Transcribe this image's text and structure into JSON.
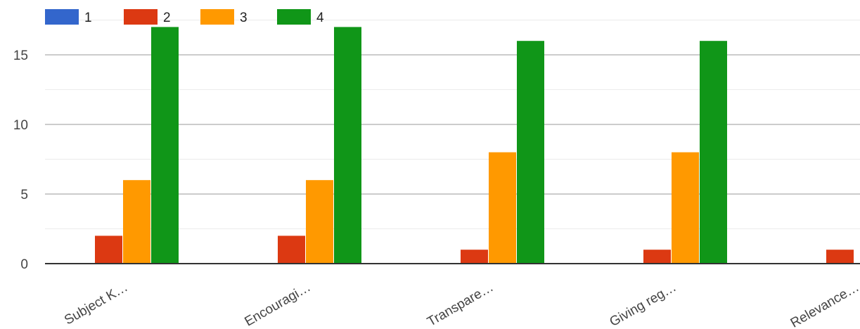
{
  "chart_data": {
    "type": "bar",
    "categories": [
      "Subject K…",
      "Encouragi…",
      "Transpare…",
      "Giving reg…",
      "Relevance…"
    ],
    "series": [
      {
        "name": "1",
        "color": "#3366cc",
        "values": [
          0,
          0,
          0,
          0,
          0
        ]
      },
      {
        "name": "2",
        "color": "#dc3912",
        "values": [
          2,
          2,
          1,
          1,
          1
        ]
      },
      {
        "name": "3",
        "color": "#ff9900",
        "values": [
          6,
          6,
          8,
          8,
          null
        ]
      },
      {
        "name": "4",
        "color": "#109618",
        "values": [
          17,
          17,
          16,
          16,
          null
        ]
      }
    ],
    "yticks": [
      0,
      5,
      10,
      15
    ],
    "ylim": [
      0,
      17.5
    ],
    "grid": true,
    "legend_position": "top-left",
    "title": "",
    "xlabel": "",
    "ylabel": ""
  }
}
